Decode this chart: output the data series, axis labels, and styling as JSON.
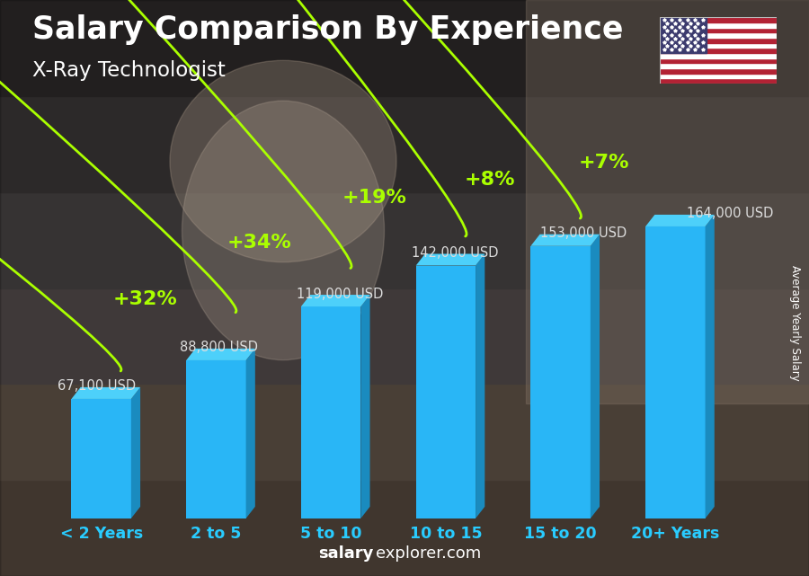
{
  "title": "Salary Comparison By Experience",
  "subtitle": "X-Ray Technologist",
  "categories": [
    "< 2 Years",
    "2 to 5",
    "5 to 10",
    "10 to 15",
    "15 to 20",
    "20+ Years"
  ],
  "values": [
    67100,
    88800,
    119000,
    142000,
    153000,
    164000
  ],
  "salary_labels": [
    "67,100 USD",
    "88,800 USD",
    "119,000 USD",
    "142,000 USD",
    "153,000 USD",
    "164,000 USD"
  ],
  "pct_changes": [
    "+32%",
    "+34%",
    "+19%",
    "+8%",
    "+7%"
  ],
  "bar_color_face": "#29b6f6",
  "bar_color_side": "#1a8bbf",
  "bar_color_top": "#4dd0fa",
  "text_color_white": "#ffffff",
  "text_color_green": "#aaff00",
  "watermark_bold": "salary",
  "watermark_rest": "explorer.com",
  "ylabel": "Average Yearly Salary",
  "ylim_max": 220000,
  "flag_colors_red": "#B22234",
  "flag_colors_blue": "#3C3B6E",
  "flag_colors_white": "#FFFFFF",
  "bg_top": "#7a6a5a",
  "bg_mid": "#5a5050",
  "bg_bottom": "#3a3030",
  "salary_label_color": "#dddddd",
  "xtick_color": "#29ccff"
}
